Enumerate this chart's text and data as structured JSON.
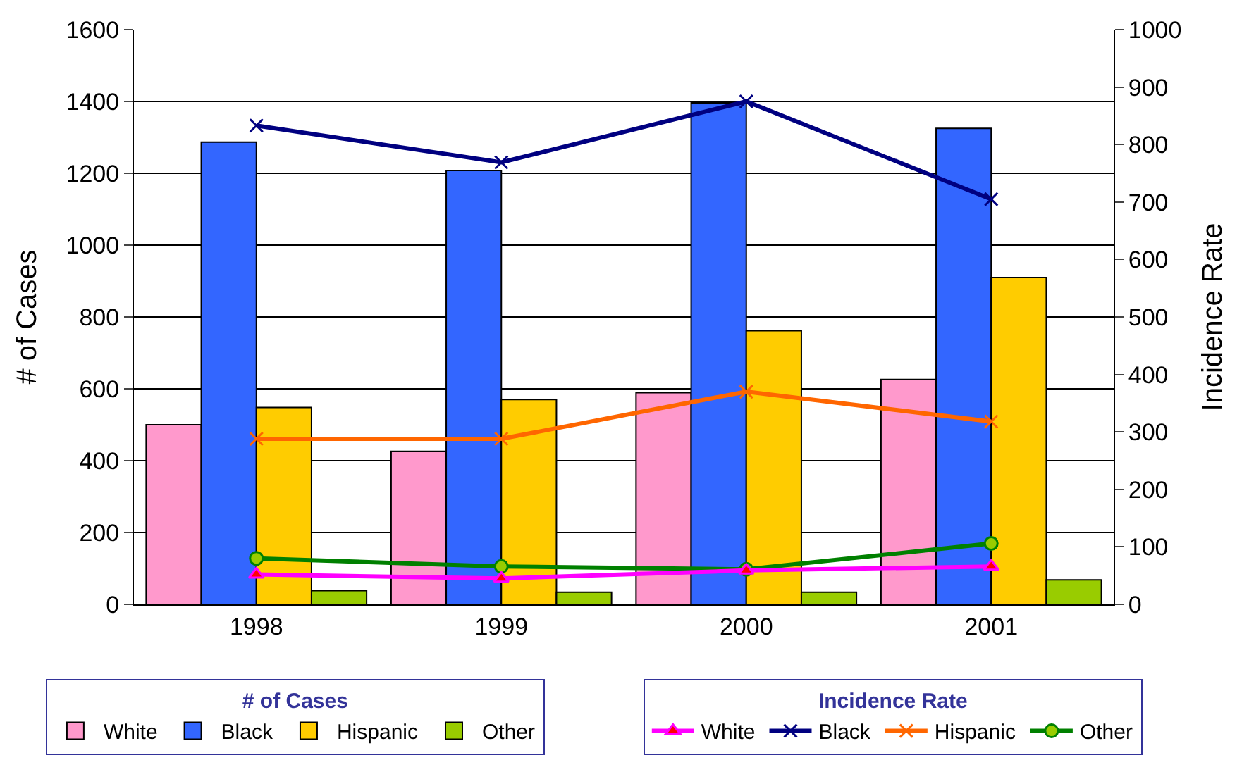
{
  "chart_data": {
    "type": "bar",
    "categories": [
      "1998",
      "1999",
      "2000",
      "2001"
    ],
    "ylabel": "# of Cases",
    "y2label": "Incidence Rate",
    "legend_title": [
      "# of Cases",
      "Incidence Rate"
    ],
    "ylim": [
      0,
      1600
    ],
    "yticks": [
      0,
      200,
      400,
      600,
      800,
      1000,
      1200,
      1400,
      1600
    ],
    "y2lim": [
      0,
      1000
    ],
    "y2ticks": [
      0,
      100,
      200,
      300,
      400,
      500,
      600,
      700,
      800,
      900,
      1000
    ],
    "grid": "y",
    "legend": "bottom",
    "series": [
      {
        "name": "White",
        "color": "#ff99cc",
        "values": [
          500,
          426,
          589,
          626
        ]
      },
      {
        "name": "Black",
        "color": "#3366ff",
        "values": [
          1287,
          1208,
          1396,
          1325
        ]
      },
      {
        "name": "Hispanic",
        "color": "#ffcc00",
        "values": [
          548,
          570,
          762,
          910
        ]
      },
      {
        "name": "Other",
        "color": "#99cc00",
        "values": [
          38,
          34,
          34,
          68
        ]
      },
      {
        "name": "White",
        "type": "line",
        "axis": "y2",
        "color": "#ff00ff",
        "marker": "triangle",
        "values": [
          52,
          45,
          59,
          66
        ]
      },
      {
        "name": "Black",
        "type": "line",
        "axis": "y2",
        "color": "#000080",
        "marker": "cross",
        "values": [
          833,
          769,
          875,
          705
        ]
      },
      {
        "name": "Hispanic",
        "type": "line",
        "axis": "y2",
        "color": "#ff6600",
        "marker": "cross",
        "values": [
          288,
          288,
          370,
          318
        ]
      },
      {
        "name": "Other",
        "type": "line",
        "axis": "y2",
        "color": "#008000",
        "marker": "circle",
        "values": [
          80,
          66,
          61,
          106
        ]
      }
    ]
  }
}
